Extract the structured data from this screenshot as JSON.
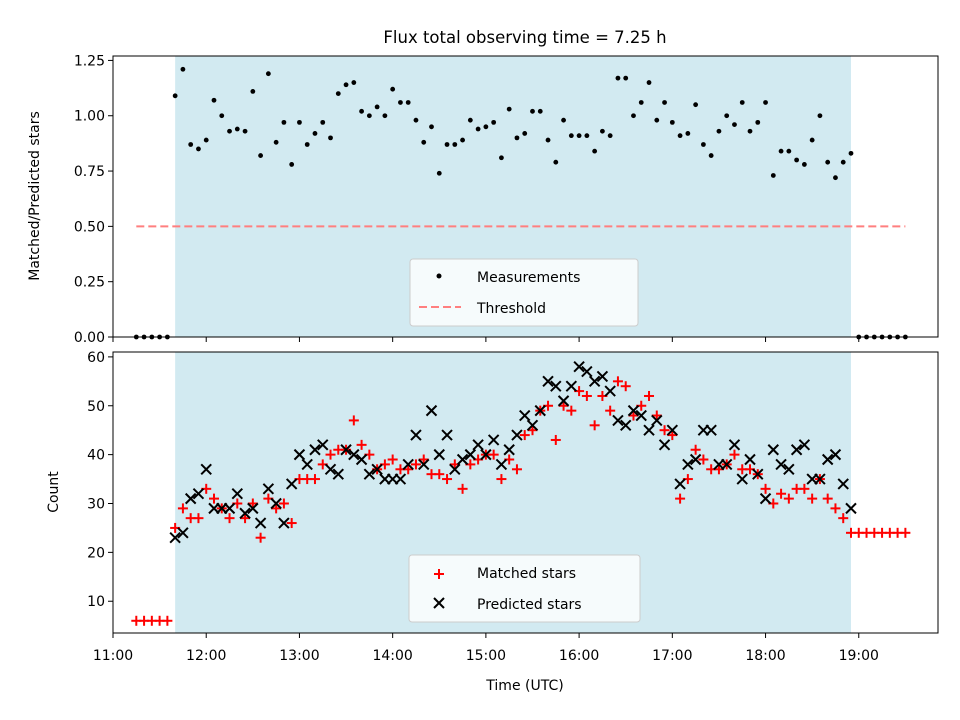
{
  "chart_data": [
    {
      "type": "scatter",
      "title": "Flux total observing time = 7.25 h",
      "xlabel": "",
      "ylabel": "Matched/Predicted stars",
      "xlim": [
        "11:00",
        "19:51"
      ],
      "ylim": [
        0,
        1.27
      ],
      "yticks": [
        "0.00",
        "0.25",
        "0.50",
        "0.75",
        "1.00",
        "1.25"
      ],
      "shaded_range": [
        "11:40",
        "18:55"
      ],
      "legend_position": "bottom-center",
      "series": [
        {
          "name": "Measurements",
          "marker": "dot",
          "color": "#000000",
          "x": [
            "11:15",
            "11:20",
            "11:25",
            "11:30",
            "11:35",
            "11:40",
            "11:45",
            "11:50",
            "11:55",
            "12:00",
            "12:05",
            "12:10",
            "12:15",
            "12:20",
            "12:25",
            "12:30",
            "12:35",
            "12:40",
            "12:45",
            "12:50",
            "12:55",
            "13:00",
            "13:05",
            "13:10",
            "13:15",
            "13:20",
            "13:25",
            "13:30",
            "13:35",
            "13:40",
            "13:45",
            "13:50",
            "13:55",
            "14:00",
            "14:05",
            "14:10",
            "14:15",
            "14:20",
            "14:25",
            "14:30",
            "14:35",
            "14:40",
            "14:45",
            "14:50",
            "14:55",
            "15:00",
            "15:05",
            "15:10",
            "15:15",
            "15:20",
            "15:25",
            "15:30",
            "15:35",
            "15:40",
            "15:45",
            "15:50",
            "15:55",
            "16:00",
            "16:05",
            "16:10",
            "16:15",
            "16:20",
            "16:25",
            "16:30",
            "16:35",
            "16:40",
            "16:45",
            "16:50",
            "16:55",
            "17:00",
            "17:05",
            "17:10",
            "17:15",
            "17:20",
            "17:25",
            "17:30",
            "17:35",
            "17:40",
            "17:45",
            "17:50",
            "17:55",
            "18:00",
            "18:05",
            "18:10",
            "18:15",
            "18:20",
            "18:25",
            "18:30",
            "18:35",
            "18:40",
            "18:45",
            "18:50",
            "18:55",
            "19:00",
            "19:05",
            "19:10",
            "19:15",
            "19:20",
            "19:25",
            "19:30"
          ],
          "y": [
            0,
            0,
            0,
            0,
            0,
            1.09,
            1.21,
            0.87,
            0.85,
            0.89,
            1.07,
            1.0,
            0.93,
            0.94,
            0.93,
            1.11,
            0.82,
            1.19,
            0.88,
            0.97,
            0.78,
            0.97,
            0.87,
            0.92,
            0.97,
            0.9,
            1.1,
            1.14,
            1.15,
            1.02,
            1.0,
            1.04,
            1.0,
            1.12,
            1.06,
            1.06,
            0.98,
            0.88,
            0.95,
            0.74,
            0.87,
            0.87,
            0.89,
            0.98,
            0.94,
            0.95,
            0.97,
            0.81,
            1.03,
            0.9,
            0.92,
            1.02,
            1.02,
            0.89,
            0.79,
            0.98,
            0.91,
            0.91,
            0.91,
            0.84,
            0.93,
            0.91,
            1.17,
            1.17,
            1.0,
            1.06,
            1.15,
            0.98,
            1.06,
            0.97,
            0.91,
            0.92,
            1.05,
            0.87,
            0.82,
            0.93,
            1.0,
            0.96,
            1.06,
            0.93,
            0.97,
            1.06,
            0.73,
            0.84,
            0.84,
            0.8,
            0.78,
            0.89,
            1.0,
            0.79,
            0.72,
            0.79,
            0.83,
            0,
            0,
            0,
            0,
            0,
            0,
            0
          ]
        },
        {
          "name": "Threshold",
          "marker": "dashed-line",
          "color": "#ff7f7f",
          "x": [
            "11:15",
            "19:30"
          ],
          "y": [
            0.5,
            0.5
          ]
        }
      ]
    },
    {
      "type": "scatter",
      "title": "",
      "xlabel": "Time (UTC)",
      "ylabel": "Count",
      "xlim": [
        "11:00",
        "19:51"
      ],
      "ylim": [
        3.5,
        61
      ],
      "yticks": [
        "10",
        "20",
        "30",
        "40",
        "50",
        "60"
      ],
      "xticks": [
        "11:00",
        "12:00",
        "13:00",
        "14:00",
        "15:00",
        "16:00",
        "17:00",
        "18:00",
        "19:00"
      ],
      "shaded_range": [
        "11:40",
        "18:55"
      ],
      "legend_position": "bottom-center",
      "series": [
        {
          "name": "Matched stars",
          "marker": "plus",
          "color": "#ff0000",
          "x": [
            "11:15",
            "11:20",
            "11:25",
            "11:30",
            "11:35",
            "11:40",
            "11:45",
            "11:50",
            "11:55",
            "12:00",
            "12:05",
            "12:10",
            "12:15",
            "12:20",
            "12:25",
            "12:30",
            "12:35",
            "12:40",
            "12:45",
            "12:50",
            "12:55",
            "13:00",
            "13:05",
            "13:10",
            "13:15",
            "13:20",
            "13:25",
            "13:30",
            "13:35",
            "13:40",
            "13:45",
            "13:50",
            "13:55",
            "14:00",
            "14:05",
            "14:10",
            "14:15",
            "14:20",
            "14:25",
            "14:30",
            "14:35",
            "14:40",
            "14:45",
            "14:50",
            "14:55",
            "15:00",
            "15:05",
            "15:10",
            "15:15",
            "15:20",
            "15:25",
            "15:30",
            "15:35",
            "15:40",
            "15:45",
            "15:50",
            "15:55",
            "16:00",
            "16:05",
            "16:10",
            "16:15",
            "16:20",
            "16:25",
            "16:30",
            "16:35",
            "16:40",
            "16:45",
            "16:50",
            "16:55",
            "17:00",
            "17:05",
            "17:10",
            "17:15",
            "17:20",
            "17:25",
            "17:30",
            "17:35",
            "17:40",
            "17:45",
            "17:50",
            "17:55",
            "18:00",
            "18:05",
            "18:10",
            "18:15",
            "18:20",
            "18:25",
            "18:30",
            "18:35",
            "18:40",
            "18:45",
            "18:50",
            "18:55",
            "19:00",
            "19:05",
            "19:10",
            "19:15",
            "19:20",
            "19:25",
            "19:30"
          ],
          "y": [
            6,
            6,
            6,
            6,
            6,
            25,
            29,
            27,
            27,
            33,
            31,
            29,
            27,
            30,
            27,
            30,
            23,
            31,
            29,
            30,
            26,
            35,
            35,
            35,
            38,
            40,
            41,
            41,
            47,
            42,
            40,
            37,
            38,
            39,
            37,
            37,
            38,
            39,
            36,
            36,
            35,
            38,
            33,
            38,
            39,
            40,
            40,
            35,
            39,
            37,
            44,
            45,
            49,
            50,
            43,
            50,
            49,
            53,
            52,
            46,
            52,
            49,
            55,
            54,
            48,
            50,
            52,
            48,
            45,
            44,
            31,
            35,
            41,
            39,
            37,
            37,
            38,
            40,
            37,
            37,
            36,
            33,
            30,
            32,
            31,
            33,
            33,
            31,
            35,
            31,
            29,
            27,
            24,
            24,
            24,
            24,
            24,
            24,
            24,
            24
          ]
        },
        {
          "name": "Predicted stars",
          "marker": "x",
          "color": "#000000",
          "x": [
            "11:40",
            "11:45",
            "11:50",
            "11:55",
            "12:00",
            "12:05",
            "12:10",
            "12:15",
            "12:20",
            "12:25",
            "12:30",
            "12:35",
            "12:40",
            "12:45",
            "12:50",
            "12:55",
            "13:00",
            "13:05",
            "13:10",
            "13:15",
            "13:20",
            "13:25",
            "13:30",
            "13:35",
            "13:40",
            "13:45",
            "13:50",
            "13:55",
            "14:00",
            "14:05",
            "14:10",
            "14:15",
            "14:20",
            "14:25",
            "14:30",
            "14:35",
            "14:40",
            "14:45",
            "14:50",
            "14:55",
            "15:00",
            "15:05",
            "15:10",
            "15:15",
            "15:20",
            "15:25",
            "15:30",
            "15:35",
            "15:40",
            "15:45",
            "15:50",
            "15:55",
            "16:00",
            "16:05",
            "16:10",
            "16:15",
            "16:20",
            "16:25",
            "16:30",
            "16:35",
            "16:40",
            "16:45",
            "16:50",
            "16:55",
            "17:00",
            "17:05",
            "17:10",
            "17:15",
            "17:20",
            "17:25",
            "17:30",
            "17:35",
            "17:40",
            "17:45",
            "17:50",
            "17:55",
            "18:00",
            "18:05",
            "18:10",
            "18:15",
            "18:20",
            "18:25",
            "18:30",
            "18:35",
            "18:40",
            "18:45",
            "18:50",
            "18:55"
          ],
          "y": [
            23,
            24,
            31,
            32,
            37,
            29,
            29,
            29,
            32,
            28,
            29,
            26,
            33,
            30,
            26,
            34,
            40,
            38,
            41,
            42,
            37,
            36,
            41,
            40,
            39,
            36,
            37,
            35,
            35,
            35,
            38,
            44,
            38,
            49,
            40,
            44,
            37,
            39,
            40,
            42,
            40,
            43,
            38,
            41,
            44,
            48,
            46,
            49,
            55,
            54,
            51,
            54,
            58,
            57,
            55,
            56,
            53,
            47,
            46,
            49,
            48,
            45,
            47,
            42,
            45,
            34,
            38,
            39,
            45,
            45,
            38,
            38,
            42,
            35,
            39,
            36,
            31,
            41,
            38,
            37,
            41,
            42,
            35,
            35,
            39,
            40,
            34,
            29
          ]
        }
      ]
    }
  ]
}
